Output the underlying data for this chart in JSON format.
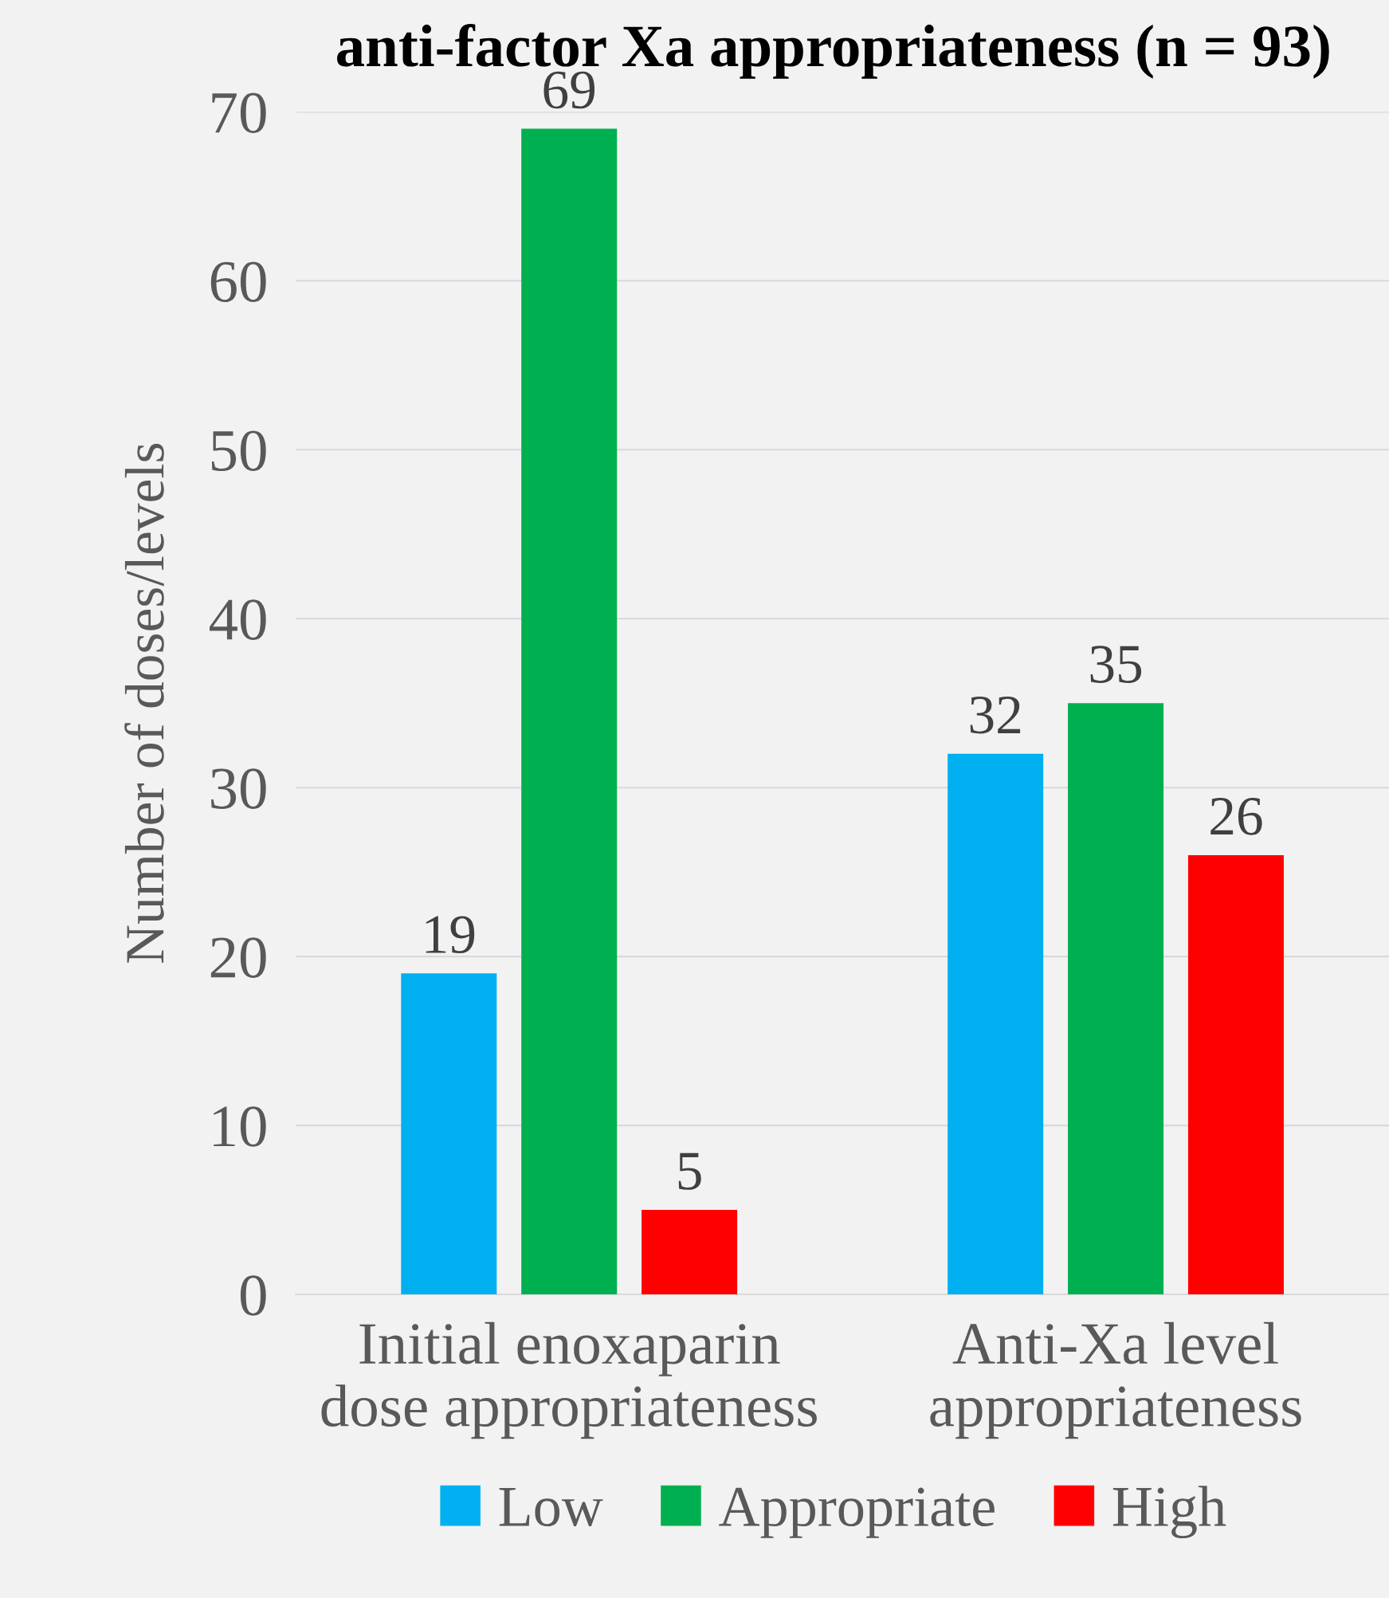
{
  "chart_data": {
    "type": "bar",
    "title": "anti-factor Xa appropriateness (n = 93)",
    "ylabel": "Number of doses/levels",
    "categories": [
      "Initial enoxaparin dose appropriateness",
      "Anti-Xa level appropriateness"
    ],
    "series": [
      {
        "name": "Low",
        "color": "#00b0f0",
        "values": [
          19,
          32
        ]
      },
      {
        "name": "Appropriate",
        "color": "#00b050",
        "values": [
          69,
          35
        ]
      },
      {
        "name": "High",
        "color": "#ff0000",
        "values": [
          5,
          26
        ]
      }
    ],
    "ylim": [
      0,
      70
    ],
    "yticks": [
      0,
      10,
      20,
      30,
      40,
      50,
      60,
      70
    ],
    "grid": "y",
    "legend": "bottom",
    "data_labels": true
  }
}
